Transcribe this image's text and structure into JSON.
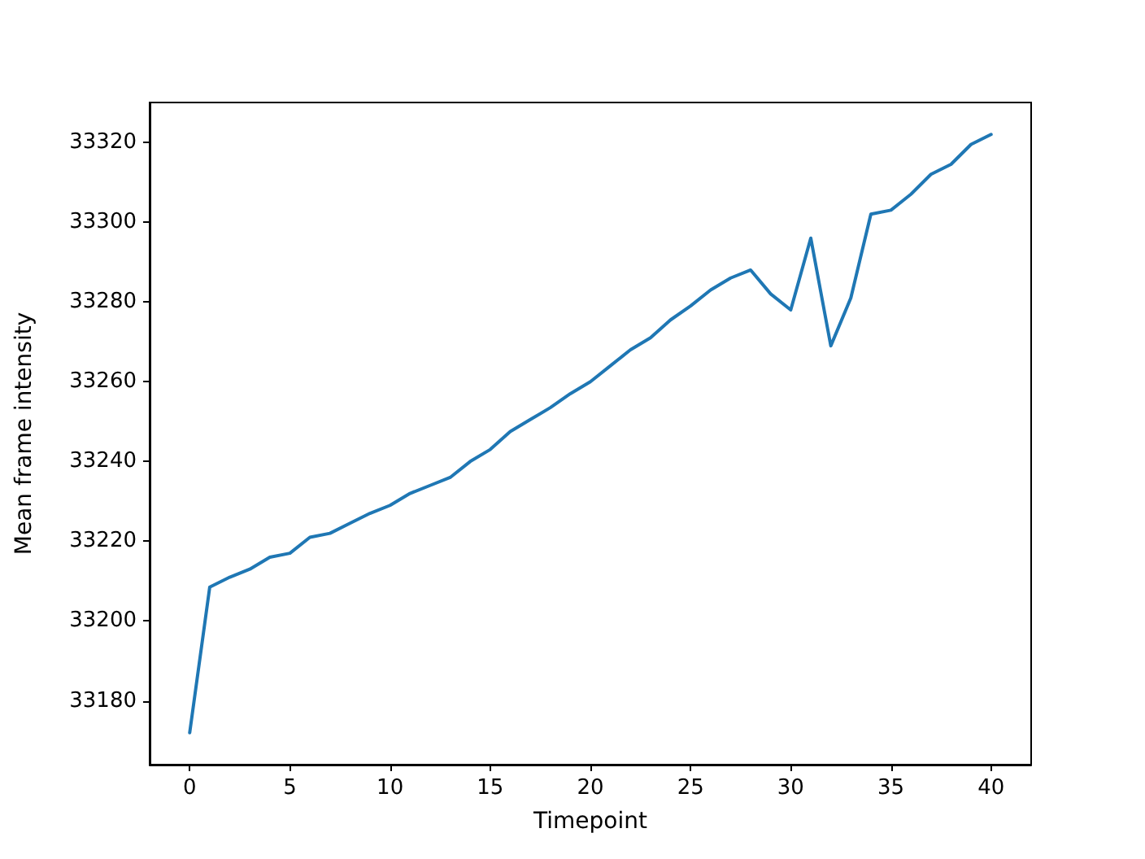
{
  "chart_data": {
    "type": "line",
    "xlabel": "Timepoint",
    "ylabel": "Mean frame intensity",
    "x": [
      0,
      1,
      2,
      3,
      4,
      5,
      6,
      7,
      8,
      9,
      10,
      11,
      12,
      13,
      14,
      15,
      16,
      17,
      18,
      19,
      20,
      21,
      22,
      23,
      24,
      25,
      26,
      27,
      28,
      29,
      30,
      31,
      32,
      33,
      34,
      35,
      36,
      37,
      38,
      39,
      40
    ],
    "series": [
      {
        "color": "#1f77b4",
        "values": [
          33172,
          33208.5,
          33211,
          33213,
          33216,
          33217,
          33221,
          33222,
          33224.5,
          33227,
          33229,
          33232,
          33234,
          33236,
          33240,
          33243,
          33247.5,
          33250.5,
          33253.5,
          33257,
          33260,
          33264,
          33268,
          33271,
          33275.5,
          33279,
          33283,
          33286,
          33288,
          33282,
          33278,
          33296,
          33269,
          33281,
          33302,
          33303,
          33307,
          33312,
          33314.5,
          33319.5,
          33322
        ]
      }
    ],
    "xlim": [
      -2,
      42
    ],
    "xticks": [
      0,
      5,
      10,
      15,
      20,
      25,
      30,
      35,
      40
    ],
    "ylim": [
      33164,
      33330
    ],
    "yticks": [
      33180,
      33200,
      33220,
      33240,
      33260,
      33280,
      33300,
      33320
    ],
    "grid": false,
    "marker": "none",
    "line_style": "solid"
  }
}
